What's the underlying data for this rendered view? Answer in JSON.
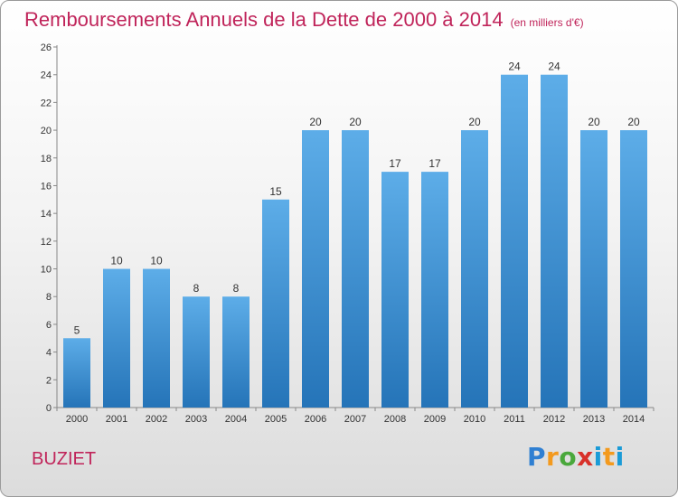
{
  "title": "Remboursements Annuels de la Dette de 2000 à 2014",
  "subtitle": "(en milliers d'€)",
  "commune": "BUZIET",
  "logo": {
    "p": "P",
    "r": "r",
    "o": "o",
    "x": "x",
    "i1": "i",
    "t": "t",
    "i2": "i"
  },
  "colors": {
    "title": "#c0245a",
    "bar_top": "#5dade8",
    "bar_bottom": "#2574b8"
  },
  "chart_data": {
    "type": "bar",
    "title": "Remboursements Annuels de la Dette de 2000 à 2014",
    "subtitle": "(en milliers d'€)",
    "xlabel": "",
    "ylabel": "",
    "ylim": [
      0,
      26
    ],
    "yticks": [
      0,
      2,
      4,
      6,
      8,
      10,
      12,
      14,
      16,
      18,
      20,
      22,
      24,
      26
    ],
    "grid": false,
    "categories": [
      "2000",
      "2001",
      "2002",
      "2003",
      "2004",
      "2005",
      "2006",
      "2007",
      "2008",
      "2009",
      "2010",
      "2011",
      "2012",
      "2013",
      "2014"
    ],
    "values": [
      5,
      10,
      10,
      8,
      8,
      15,
      20,
      20,
      17,
      17,
      20,
      24,
      24,
      20,
      20
    ]
  }
}
